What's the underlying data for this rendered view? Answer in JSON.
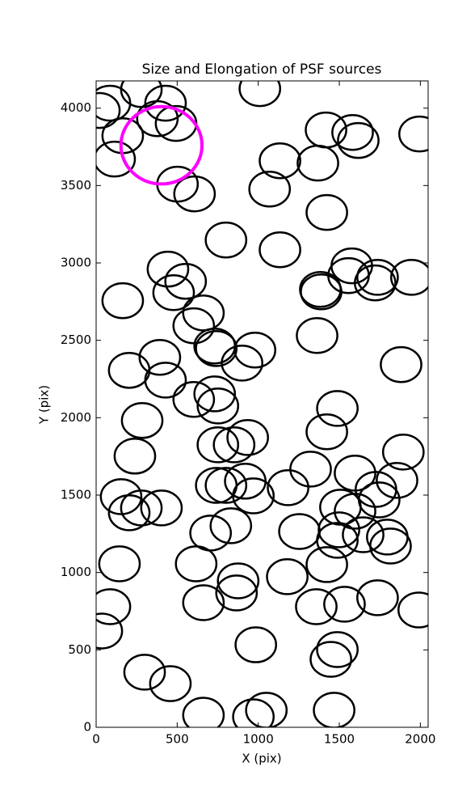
{
  "chart_data": {
    "type": "ellipse-scatter",
    "title": "Size and Elongation of PSF sources",
    "xlabel": "X (pix)",
    "ylabel": "Y (pix)",
    "xlim": [
      0,
      2048
    ],
    "ylim": [
      0,
      4176
    ],
    "xticks": [
      0,
      500,
      1000,
      1500,
      2000
    ],
    "yticks": [
      0,
      500,
      1000,
      1500,
      2000,
      2500,
      3000,
      3500,
      4000
    ],
    "series": [
      {
        "color": "#000000",
        "width": 250,
        "height": 225,
        "x": [
          20,
          85,
          164,
          114,
          279,
          378,
          428,
          493,
          502,
          607,
          1010,
          1134,
          1368,
          1418,
          1582,
          1617,
          1995,
          1070,
          1423,
          801,
          1134,
          1577,
          1557,
          1736,
          1721,
          1945,
          1383,
          1388,
          443,
          552,
          478,
          164,
          662,
          602,
          741,
          731,
          900,
          980,
          1363,
          1881,
          393,
          204,
          428,
          602,
          731,
          751,
          1488,
          1423,
          284,
          239,
          935,
          751,
          851,
          1597,
          1323,
          1184,
          1726,
          1895,
          1856,
          154,
          279,
          204,
          403,
          741,
          801,
          970,
          920,
          1507,
          1597,
          1746,
          1796,
          1816,
          1647,
          1498,
          1488,
          1254,
          706,
          831,
          617,
          144,
          876,
          866,
          1179,
          1423,
          1358,
          1532,
          1736,
          1990,
          85,
          35,
          662,
          985,
          1488,
          1448,
          299,
          458,
          1050,
          970,
          662,
          1468
        ],
        "values": [
          3985,
          4032,
          3822,
          3671,
          4120,
          3932,
          4032,
          3901,
          3509,
          3446,
          4126,
          3660,
          3645,
          3859,
          3843,
          3791,
          3833,
          3477,
          3326,
          3148,
          3085,
          2981,
          2918,
          2907,
          2871,
          2907,
          2829,
          2813,
          2960,
          2881,
          2808,
          2756,
          2677,
          2594,
          2447,
          2463,
          2353,
          2437,
          2531,
          2343,
          2390,
          2306,
          2243,
          2118,
          2154,
          2076,
          2060,
          1909,
          1982,
          1752,
          1872,
          1825,
          1825,
          1642,
          1668,
          1548,
          1537,
          1778,
          1595,
          1490,
          1417,
          1386,
          1417,
          1563,
          1563,
          1495,
          1590,
          1422,
          1396,
          1469,
          1229,
          1171,
          1244,
          1276,
          1208,
          1265,
          1255,
          1302,
          1056,
          1056,
          946,
          868,
          973,
          1051,
          779,
          795,
          837,
          758,
          779,
          622,
          805,
          533,
          502,
          439,
          356,
          282,
          110,
          68,
          78,
          110
        ]
      },
      {
        "color": "#ff00ff",
        "width": 500,
        "height": 500,
        "x": [
          403
        ],
        "values": [
          3760
        ]
      }
    ]
  }
}
